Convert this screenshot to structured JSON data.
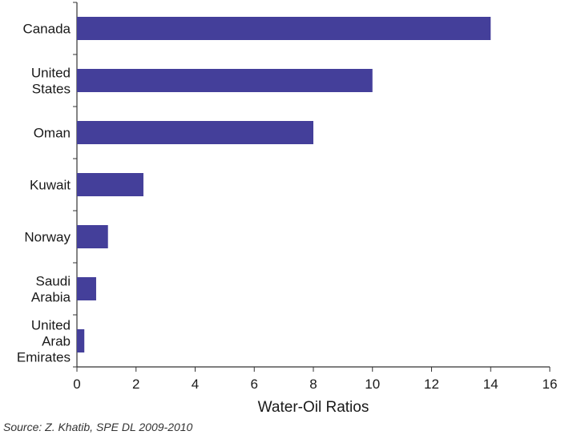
{
  "chart_data": {
    "type": "bar",
    "orientation": "horizontal",
    "categories": [
      [
        "Canada"
      ],
      [
        "United",
        "States"
      ],
      [
        "Oman"
      ],
      [
        "Kuwait"
      ],
      [
        "Norway"
      ],
      [
        "Saudi",
        "Arabia"
      ],
      [
        "United",
        "Arab",
        "Emirates"
      ]
    ],
    "values": [
      14,
      10,
      8,
      2.25,
      1.05,
      0.65,
      0.25
    ],
    "xlabel": "Water-Oil Ratios",
    "xlim": [
      0,
      16
    ],
    "xticks": [
      0,
      2,
      4,
      6,
      8,
      10,
      12,
      14,
      16
    ],
    "bar_color": "#443f9a",
    "grid": false,
    "legend": "none"
  },
  "source": "Source: Z. Khatib, SPE DL 2009-2010"
}
